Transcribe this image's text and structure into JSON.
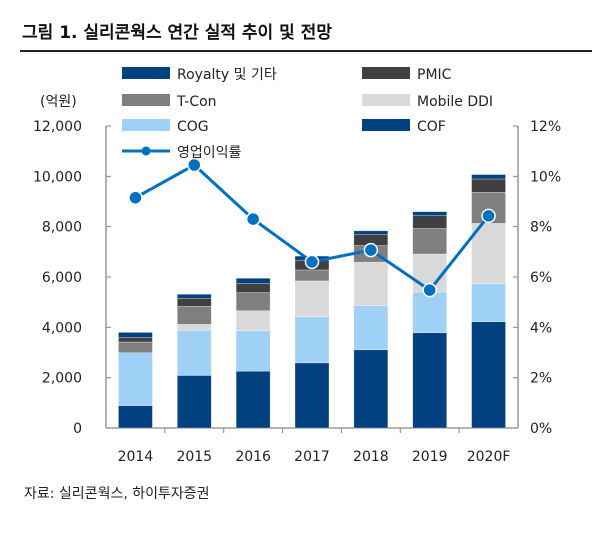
{
  "title": "그림 1. 실리콘웍스 연간 실적 추이 및 전망",
  "source": "자료: 실리콘웍스, 하이투자증권",
  "chart_data": {
    "type": "bar",
    "stacked": true,
    "categories": [
      "2014",
      "2015",
      "2016",
      "2017",
      "2018",
      "2019",
      "2020F"
    ],
    "left_unit": "(억원)",
    "ylim": [
      0,
      12000
    ],
    "yticks": [
      "0",
      "2,000",
      "4,000",
      "6,000",
      "8,000",
      "10,000",
      "12,000"
    ],
    "y2lim": [
      0,
      12
    ],
    "y2ticks": [
      "0%",
      "2%",
      "4%",
      "6%",
      "8%",
      "10%",
      "12%"
    ],
    "legend_placement": "top",
    "series": [
      {
        "name": "COF",
        "color": "#02417f",
        "values": [
          890,
          2090,
          2260,
          2590,
          3110,
          3785,
          4225
        ]
      },
      {
        "name": "COG",
        "color": "#9fd1f7",
        "values": [
          2100,
          1800,
          1605,
          1830,
          1750,
          1620,
          1510
        ]
      },
      {
        "name": "Mobile DDI",
        "color": "#d9d9d9",
        "values": [
          0,
          230,
          795,
          1425,
          1730,
          1505,
          2395
        ]
      },
      {
        "name": "T-Con",
        "color": "#7f7f7f",
        "values": [
          425,
          715,
          720,
          435,
          660,
          1020,
          1235
        ]
      },
      {
        "name": "PMIC",
        "color": "#404040",
        "values": [
          185,
          320,
          370,
          390,
          440,
          505,
          530
        ]
      },
      {
        "name": "Royalty 및 기타",
        "color": "#02417f",
        "values": [
          200,
          160,
          200,
          160,
          145,
          160,
          175
        ]
      }
    ],
    "line": {
      "name": "영업이익률",
      "color": "#0070c0",
      "axis": "right",
      "unit": "%",
      "values": [
        9.15,
        10.45,
        8.3,
        6.6,
        7.07,
        5.48,
        8.43
      ]
    },
    "legend_order": [
      "Royalty 및 기타",
      "PMIC",
      "T-Con",
      "Mobile DDI",
      "COG",
      "COF",
      "영업이익률"
    ]
  }
}
